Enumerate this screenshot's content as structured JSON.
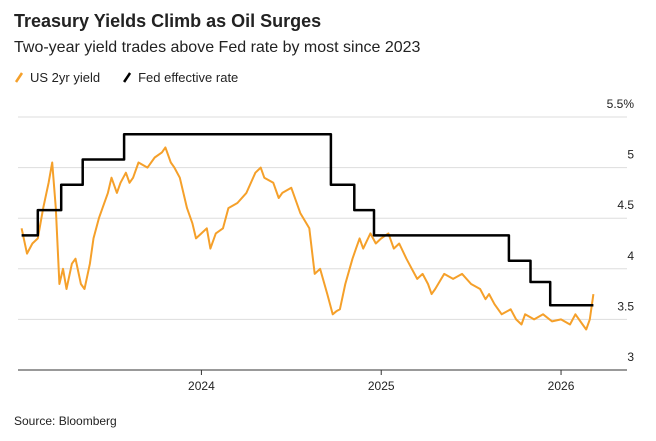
{
  "chart_data": {
    "type": "line",
    "title": "Treasury Yields Climb as Oil Surges",
    "subtitle": "Two-year yield trades above Fed rate by most since 2023",
    "source": "Source: Bloomberg",
    "series": [
      {
        "name": "US 2yr yield",
        "color": "#f5a02a",
        "x": [
          2023.0,
          2023.03,
          2023.06,
          2023.09,
          2023.12,
          2023.15,
          2023.17,
          2023.19,
          2023.21,
          2023.23,
          2023.25,
          2023.28,
          2023.3,
          2023.33,
          2023.35,
          2023.38,
          2023.4,
          2023.43,
          2023.45,
          2023.48,
          2023.5,
          2023.53,
          2023.55,
          2023.58,
          2023.6,
          2023.62,
          2023.65,
          2023.7,
          2023.74,
          2023.78,
          2023.8,
          2023.83,
          2023.85,
          2023.88,
          2023.92,
          2023.95,
          2023.97,
          2024.0,
          2024.03,
          2024.05,
          2024.08,
          2024.12,
          2024.15,
          2024.2,
          2024.25,
          2024.3,
          2024.33,
          2024.35,
          2024.4,
          2024.43,
          2024.45,
          2024.5,
          2024.55,
          2024.6,
          2024.63,
          2024.66,
          2024.7,
          2024.73,
          2024.75,
          2024.77,
          2024.8,
          2024.84,
          2024.86,
          2024.88,
          2024.9,
          2024.94,
          2024.97,
          2025.0,
          2025.04,
          2025.07,
          2025.1,
          2025.14,
          2025.17,
          2025.2,
          2025.23,
          2025.26,
          2025.28,
          2025.3,
          2025.35,
          2025.4,
          2025.45,
          2025.5,
          2025.55,
          2025.58,
          2025.6,
          2025.63,
          2025.67,
          2025.72,
          2025.75,
          2025.78,
          2025.8,
          2025.85,
          2025.9,
          2025.95,
          2026.0,
          2026.05,
          2026.08,
          2026.12,
          2026.14,
          2026.16,
          2026.18
        ],
        "values": [
          4.4,
          4.15,
          4.25,
          4.3,
          4.6,
          4.85,
          5.05,
          4.6,
          3.85,
          4.0,
          3.8,
          4.05,
          4.1,
          3.85,
          3.8,
          4.05,
          4.3,
          4.5,
          4.6,
          4.75,
          4.9,
          4.75,
          4.85,
          4.95,
          4.85,
          4.9,
          5.05,
          5.0,
          5.1,
          5.15,
          5.2,
          5.05,
          5.0,
          4.9,
          4.6,
          4.45,
          4.3,
          4.35,
          4.4,
          4.2,
          4.35,
          4.4,
          4.6,
          4.65,
          4.75,
          4.95,
          5.0,
          4.9,
          4.85,
          4.7,
          4.75,
          4.8,
          4.55,
          4.4,
          3.95,
          4.0,
          3.75,
          3.55,
          3.58,
          3.6,
          3.85,
          4.1,
          4.2,
          4.3,
          4.2,
          4.35,
          4.25,
          4.3,
          4.35,
          4.2,
          4.25,
          4.1,
          4.0,
          3.9,
          3.95,
          3.85,
          3.75,
          3.8,
          3.95,
          3.9,
          3.95,
          3.85,
          3.8,
          3.7,
          3.75,
          3.65,
          3.55,
          3.6,
          3.5,
          3.45,
          3.55,
          3.5,
          3.55,
          3.48,
          3.5,
          3.45,
          3.55,
          3.45,
          3.4,
          3.5,
          3.75
        ]
      },
      {
        "name": "Fed effective rate",
        "color": "#000000",
        "x": [
          2023.0,
          2023.09,
          2023.09,
          2023.22,
          2023.22,
          2023.34,
          2023.34,
          2023.57,
          2023.57,
          2024.72,
          2024.72,
          2024.85,
          2024.85,
          2024.96,
          2024.96,
          2025.71,
          2025.71,
          2025.83,
          2025.83,
          2025.94,
          2025.94,
          2026.18
        ],
        "values": [
          4.33,
          4.33,
          4.58,
          4.58,
          4.83,
          4.83,
          5.08,
          5.08,
          5.33,
          5.33,
          4.83,
          4.83,
          4.58,
          4.58,
          4.33,
          4.33,
          4.08,
          4.08,
          3.87,
          3.87,
          3.64,
          3.64
        ]
      }
    ],
    "xlim": [
      2022.98,
      2026.2
    ],
    "xticks": [
      2024,
      2025,
      2026
    ],
    "ylim": [
      3.0,
      5.5
    ],
    "yticks": [
      3.0,
      3.5,
      4.0,
      4.5,
      5.0,
      {
        "value": 5.5,
        "label": "5.5%"
      }
    ],
    "grid": true
  }
}
